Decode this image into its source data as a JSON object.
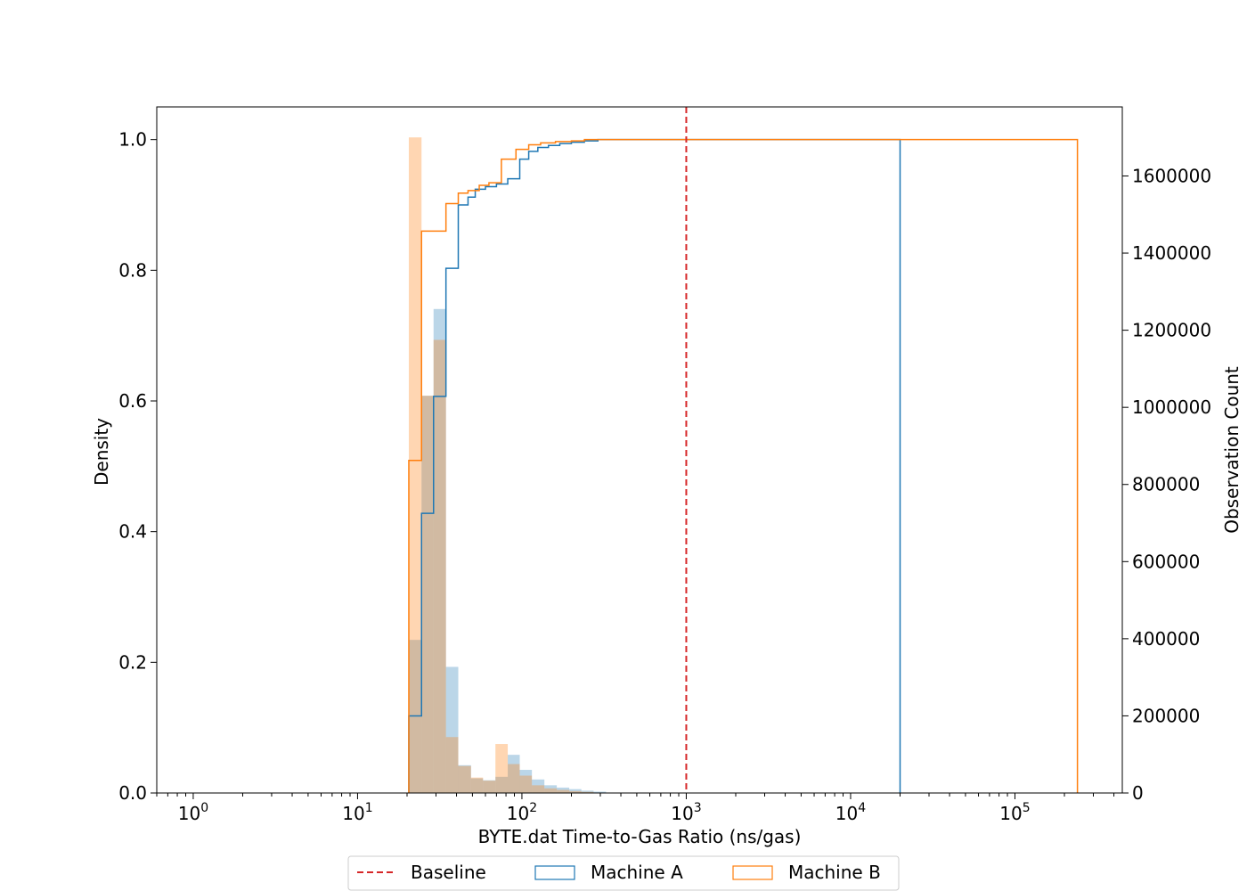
{
  "chart_data": {
    "type": "bar",
    "title": "",
    "xlabel": "BYTE.dat Time-to-Gas Ratio (ns/gas)",
    "ylabel_left": "Density",
    "ylabel_right": "Observation Count",
    "xscale": "log",
    "xlim": [
      0.6,
      450000
    ],
    "ylim_left": [
      0,
      1.05
    ],
    "ylim_right": [
      0,
      1779000
    ],
    "x_ticks": [
      {
        "value": 1,
        "base": "10",
        "exp": "0"
      },
      {
        "value": 10,
        "base": "10",
        "exp": "1"
      },
      {
        "value": 100,
        "base": "10",
        "exp": "2"
      },
      {
        "value": 1000,
        "base": "10",
        "exp": "3"
      },
      {
        "value": 10000,
        "base": "10",
        "exp": "4"
      },
      {
        "value": 100000,
        "base": "10",
        "exp": "5"
      }
    ],
    "y_ticks_left": [
      "0.0",
      "0.2",
      "0.4",
      "0.6",
      "0.8",
      "1.0"
    ],
    "y_ticks_right": [
      "0",
      "200000",
      "400000",
      "600000",
      "800000",
      "1000000",
      "1200000",
      "1400000",
      "1600000"
    ],
    "baseline_x": 1000,
    "colors": {
      "A": "#1f77b4",
      "B": "#ff7f0e",
      "baseline": "#d62728"
    },
    "legend": {
      "placement": "bottom-center",
      "entries": [
        {
          "label": "Baseline",
          "style": "dashed-line",
          "color": "#d62728"
        },
        {
          "label": "Machine A",
          "style": "box",
          "color": "#1f77b4"
        },
        {
          "label": "Machine B",
          "style": "box",
          "color": "#ff7f0e"
        }
      ]
    },
    "series": [
      {
        "name": "Machine A",
        "histogram_bins": [
          {
            "x0": 20.5,
            "x1": 24.5,
            "count": 397000
          },
          {
            "x0": 24.5,
            "x1": 29,
            "count": 1030000
          },
          {
            "x0": 29,
            "x1": 34.5,
            "count": 1255000
          },
          {
            "x0": 34.5,
            "x1": 41,
            "count": 327000
          },
          {
            "x0": 41,
            "x1": 49,
            "count": 72000
          },
          {
            "x0": 49,
            "x1": 58,
            "count": 38000
          },
          {
            "x0": 58,
            "x1": 69,
            "count": 33000
          },
          {
            "x0": 69,
            "x1": 82,
            "count": 42000
          },
          {
            "x0": 82,
            "x1": 97,
            "count": 99000
          },
          {
            "x0": 97,
            "x1": 115,
            "count": 60000
          },
          {
            "x0": 115,
            "x1": 137,
            "count": 35000
          },
          {
            "x0": 137,
            "x1": 163,
            "count": 20000
          },
          {
            "x0": 163,
            "x1": 194,
            "count": 14000
          },
          {
            "x0": 194,
            "x1": 230,
            "count": 10000
          },
          {
            "x0": 230,
            "x1": 273,
            "count": 6000
          },
          {
            "x0": 273,
            "x1": 325,
            "count": 3500
          }
        ],
        "cdf_steps": [
          [
            20.5,
            0.118
          ],
          [
            24.5,
            0.428
          ],
          [
            29,
            0.607
          ],
          [
            34.5,
            0.803
          ],
          [
            41,
            0.9
          ],
          [
            47,
            0.912
          ],
          [
            52,
            0.924
          ],
          [
            60,
            0.928
          ],
          [
            70,
            0.932
          ],
          [
            82,
            0.94
          ],
          [
            97,
            0.97
          ],
          [
            110,
            0.982
          ],
          [
            125,
            0.988
          ],
          [
            145,
            0.991
          ],
          [
            170,
            0.994
          ],
          [
            200,
            0.996
          ],
          [
            240,
            0.998
          ],
          [
            290,
            1.0
          ],
          [
            20000,
            1.0
          ]
        ]
      },
      {
        "name": "Machine B",
        "histogram_bins": [
          {
            "x0": 20.5,
            "x1": 24.5,
            "count": 1700000
          },
          {
            "x0": 24.5,
            "x1": 29,
            "count": 1030000
          },
          {
            "x0": 29,
            "x1": 34.5,
            "count": 1175000
          },
          {
            "x0": 34.5,
            "x1": 41,
            "count": 145000
          },
          {
            "x0": 41,
            "x1": 49,
            "count": 70000
          },
          {
            "x0": 49,
            "x1": 58,
            "count": 40000
          },
          {
            "x0": 58,
            "x1": 69,
            "count": 32000
          },
          {
            "x0": 69,
            "x1": 82,
            "count": 127000
          },
          {
            "x0": 82,
            "x1": 97,
            "count": 75000
          },
          {
            "x0": 97,
            "x1": 115,
            "count": 45000
          },
          {
            "x0": 115,
            "x1": 137,
            "count": 20000
          },
          {
            "x0": 137,
            "x1": 163,
            "count": 12000
          },
          {
            "x0": 163,
            "x1": 194,
            "count": 8000
          },
          {
            "x0": 194,
            "x1": 230,
            "count": 5000
          },
          {
            "x0": 230,
            "x1": 273,
            "count": 3000
          }
        ],
        "cdf_steps": [
          [
            20.5,
            0.509
          ],
          [
            24.5,
            0.86
          ],
          [
            34.5,
            0.902
          ],
          [
            41,
            0.918
          ],
          [
            47,
            0.922
          ],
          [
            55,
            0.93
          ],
          [
            63,
            0.934
          ],
          [
            75,
            0.97
          ],
          [
            92,
            0.985
          ],
          [
            110,
            0.992
          ],
          [
            130,
            0.995
          ],
          [
            160,
            0.997
          ],
          [
            200,
            0.998
          ],
          [
            240,
            1.0
          ],
          [
            240000,
            1.0
          ]
        ]
      }
    ]
  }
}
